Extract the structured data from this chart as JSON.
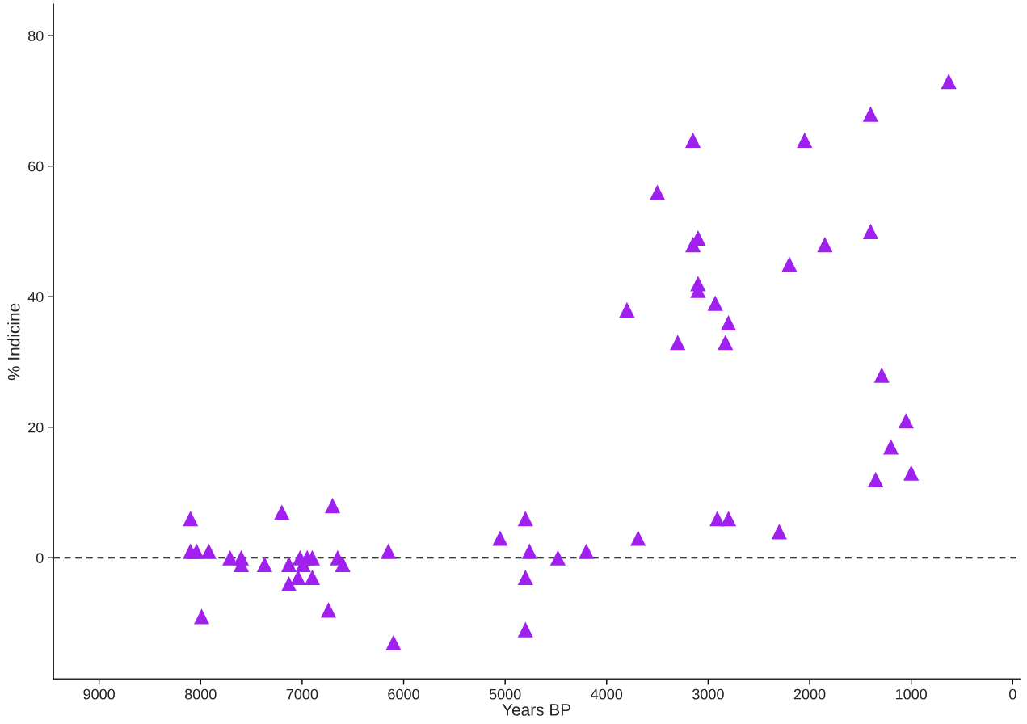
{
  "chart_data": {
    "type": "scatter",
    "xlabel": "Years BP",
    "ylabel": "% Indicine",
    "xlim": [
      9450,
      -70
    ],
    "xticks": [
      9000,
      8000,
      7000,
      6000,
      5000,
      4000,
      3000,
      2000,
      1000,
      0
    ],
    "ylim": [
      -18.6,
      84.8
    ],
    "yticks": [
      0,
      20,
      40,
      60,
      80
    ],
    "grid": false,
    "marker": "triangle",
    "ref_lines": [
      {
        "axis": "y",
        "value": 0,
        "color": "#000000",
        "line_style": "dashed"
      }
    ],
    "series": [
      {
        "color": "#a020f0",
        "x": [
          8100,
          8100,
          8040,
          7920,
          7990,
          7710,
          7600,
          7600,
          7370,
          7200,
          7130,
          7130,
          7040,
          7020,
          6990,
          6950,
          6900,
          6900,
          6740,
          6700,
          6650,
          6600,
          6150,
          6100,
          5050,
          4800,
          4800,
          4800,
          4760,
          4480,
          4200,
          3800,
          3690,
          3500,
          3300,
          3150,
          3150,
          3100,
          3100,
          3100,
          2930,
          2910,
          2830,
          2800,
          2800,
          2300,
          2200,
          2050,
          1850,
          1400,
          1400,
          1350,
          1290,
          1200,
          1050,
          1000,
          630
        ],
        "values": [
          6,
          1,
          1,
          1,
          -9,
          0,
          0,
          -1,
          -1,
          7,
          -1,
          -4,
          -3,
          0,
          -1,
          0,
          -3,
          0,
          -8,
          8,
          0,
          -1,
          1,
          -13,
          3,
          6,
          -3,
          -11,
          1,
          0,
          1,
          38,
          3,
          56,
          33,
          64,
          48,
          49,
          42,
          41,
          39,
          6,
          33,
          6,
          36,
          4,
          45,
          64,
          48,
          68,
          50,
          12,
          28,
          17,
          21,
          13,
          73
        ]
      }
    ]
  }
}
